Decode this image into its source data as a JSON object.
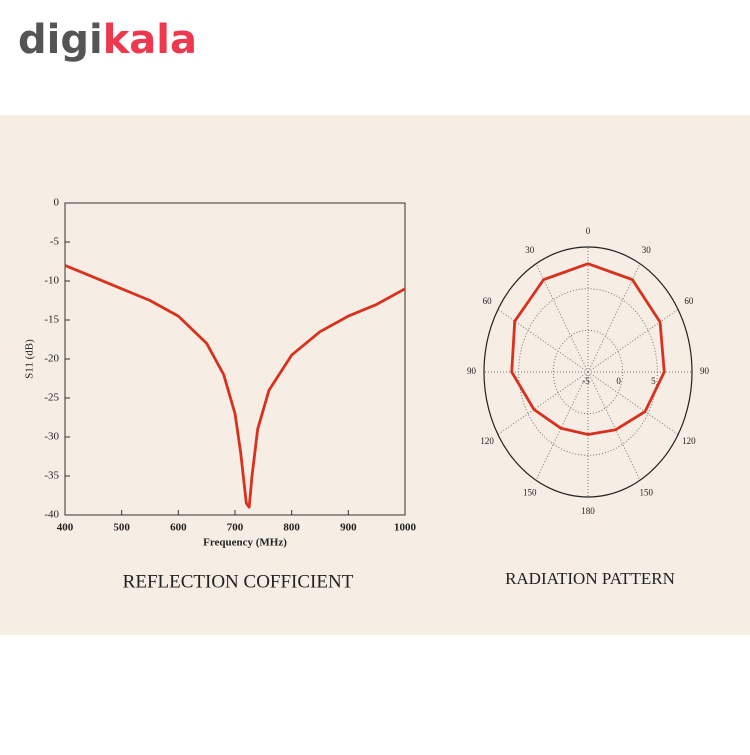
{
  "logo": [
    "digi",
    "kala"
  ],
  "chart_data": [
    {
      "type": "line",
      "title": "REFLECTION COFFICIENT",
      "xlabel": "Frequency (MHz)",
      "ylabel": "S11 (dB)",
      "x": [
        400,
        450,
        500,
        550,
        600,
        650,
        680,
        700,
        710,
        720,
        725,
        730,
        740,
        760,
        800,
        850,
        900,
        950,
        1000
      ],
      "series": [
        {
          "name": "S11",
          "color": "#d8321f",
          "values": [
            -8,
            -9.5,
            -11,
            -12.5,
            -14.5,
            -18,
            -22,
            -27,
            -32,
            -38.5,
            -39,
            -35,
            -29,
            -24,
            -19.5,
            -16.5,
            -14.5,
            -13,
            -11
          ]
        }
      ],
      "xlim": [
        400,
        1000
      ],
      "xticks": [
        400,
        500,
        600,
        700,
        800,
        900,
        1000
      ],
      "ylim": [
        -40,
        0
      ],
      "yticks": [
        0,
        -5,
        -10,
        -15,
        -20,
        -25,
        -30,
        -35,
        -40
      ]
    },
    {
      "type": "polar",
      "title": "RADIATION PATTERN",
      "theta": [
        0,
        30,
        60,
        90,
        120,
        150,
        180,
        210,
        240,
        270,
        300,
        330
      ],
      "series": [
        {
          "name": "Pattern",
          "color": "#d8321f",
          "values": [
            8,
            7.8,
            7,
            6,
            4.5,
            3,
            2.5,
            2.8,
            4,
            6,
            7.2,
            7.8
          ]
        }
      ],
      "thetaticks": [
        0,
        30,
        60,
        90,
        120,
        150,
        180,
        {
          "value": 210,
          "label": "150"
        },
        {
          "value": 240,
          "label": "120"
        },
        {
          "value": 270,
          "label": "90"
        },
        {
          "value": 300,
          "label": "60"
        },
        {
          "value": 330,
          "label": "30"
        }
      ],
      "rlim": [
        -5,
        10
      ],
      "rticks": [
        -5,
        0,
        5
      ]
    }
  ]
}
